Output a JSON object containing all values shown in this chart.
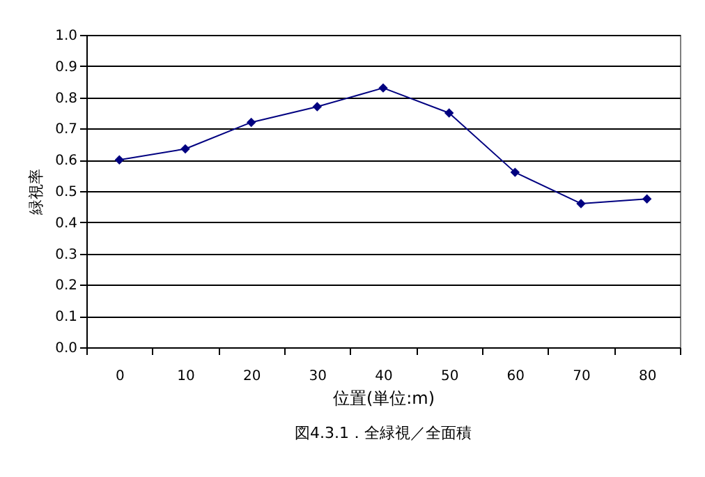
{
  "chart_data": {
    "type": "line",
    "xlabel": "位置(単位:m)",
    "ylabel": "緑視率",
    "categories": [
      "0",
      "10",
      "20",
      "30",
      "40",
      "50",
      "60",
      "70",
      "80"
    ],
    "series": [
      {
        "color": "#000080",
        "values": [
          0.6,
          0.635,
          0.72,
          0.77,
          0.83,
          0.75,
          0.56,
          0.46,
          0.475
        ]
      }
    ],
    "ylim": [
      0,
      1.0
    ],
    "yticks": [
      {
        "value": 0,
        "label": "0.0"
      },
      0.1,
      0.2,
      0.3,
      0.4,
      0.5,
      0.6,
      0.7,
      0.8,
      0.9,
      {
        "value": 1.0,
        "label": "1.0"
      }
    ],
    "grid": "y",
    "marker": "diamond",
    "line_style": "solid",
    "annotations": [
      "図4.3.1．全緑視／全面積"
    ]
  }
}
